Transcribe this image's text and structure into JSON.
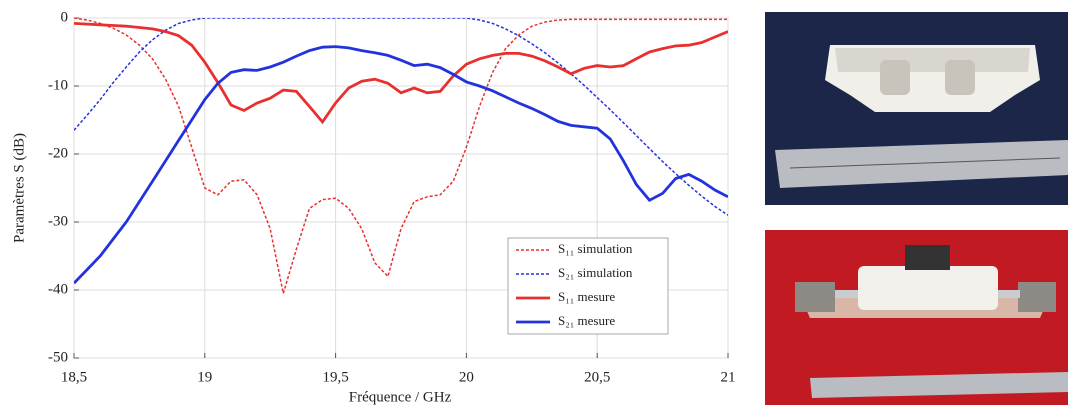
{
  "chart_data": {
    "type": "line",
    "xlabel": "Fréquence / GHz",
    "ylabel": "Paramètres S (dB)",
    "x": [
      18.5,
      18.55,
      18.6,
      18.65,
      18.7,
      18.75,
      18.8,
      18.85,
      18.9,
      18.95,
      19.0,
      19.05,
      19.1,
      19.15,
      19.2,
      19.25,
      19.3,
      19.35,
      19.4,
      19.45,
      19.5,
      19.55,
      19.6,
      19.65,
      19.7,
      19.75,
      19.8,
      19.85,
      19.9,
      19.95,
      20.0,
      20.05,
      20.1,
      20.15,
      20.2,
      20.25,
      20.3,
      20.35,
      20.4,
      20.45,
      20.5,
      20.55,
      20.6,
      20.65,
      20.7,
      20.75,
      20.8,
      20.85,
      20.9,
      20.95,
      21.0
    ],
    "series": [
      {
        "name": "S₁₁ simulation",
        "color": "#e8312f",
        "style": "dotted",
        "values": [
          0,
          -0.3,
          -0.8,
          -1.5,
          -2.5,
          -4,
          -6,
          -9,
          -13,
          -19,
          -25,
          -26,
          -24,
          -23.8,
          -26,
          -31,
          -40.5,
          -34,
          -28,
          -26.7,
          -26.5,
          -28,
          -31,
          -36,
          -38,
          -31,
          -27,
          -26.3,
          -26,
          -24,
          -19,
          -13,
          -8,
          -4.5,
          -2.5,
          -1.2,
          -0.6,
          -0.3,
          -0.2,
          -0.2,
          -0.2,
          -0.2,
          -0.2,
          -0.2,
          -0.2,
          -0.2,
          -0.2,
          -0.2,
          -0.2,
          -0.2,
          -0.2
        ]
      },
      {
        "name": "S₂₁ simulation",
        "color": "#2233dd",
        "style": "dotted",
        "values": [
          -16.5,
          -14.3,
          -12,
          -9.5,
          -7.2,
          -5,
          -3.2,
          -1.8,
          -0.8,
          -0.3,
          0,
          0,
          0,
          0,
          0,
          0,
          0,
          0,
          0,
          0,
          0,
          0,
          0,
          0,
          0,
          0,
          0,
          0,
          0,
          0,
          0,
          -0.3,
          -0.8,
          -1.6,
          -2.6,
          -3.8,
          -5.1,
          -6.6,
          -8.2,
          -9.9,
          -11.7,
          -13.5,
          -15.4,
          -17.3,
          -19.2,
          -21.1,
          -22.9,
          -24.6,
          -26.2,
          -27.7,
          -29
        ]
      },
      {
        "name": "S₁₁ mesure",
        "color": "#e8312f",
        "style": "solid",
        "values": [
          -0.8,
          -0.9,
          -1,
          -1.1,
          -1.2,
          -1.4,
          -1.6,
          -2,
          -2.6,
          -4,
          -6.5,
          -9.5,
          -12.8,
          -13.6,
          -12.5,
          -11.8,
          -10.6,
          -10.8,
          -13,
          -15.3,
          -12.5,
          -10.3,
          -9.3,
          -9,
          -9.6,
          -11,
          -10.3,
          -11,
          -10.8,
          -8.5,
          -6.8,
          -6,
          -5.5,
          -5.2,
          -5.2,
          -5.6,
          -6.3,
          -7.2,
          -8.2,
          -7.4,
          -7,
          -7.2,
          -7,
          -6,
          -5,
          -4.5,
          -4.1,
          -4,
          -3.6,
          -2.8,
          -2
        ]
      },
      {
        "name": "S₂₁ mesure",
        "color": "#2233dd",
        "style": "solid",
        "values": [
          -39,
          -37,
          -35,
          -32.5,
          -30,
          -27,
          -24,
          -21,
          -18,
          -15,
          -12,
          -9.6,
          -8,
          -7.6,
          -7.7,
          -7.2,
          -6.5,
          -5.6,
          -4.8,
          -4.3,
          -4.2,
          -4.4,
          -4.8,
          -5.1,
          -5.5,
          -6.2,
          -7,
          -6.8,
          -7.3,
          -8.3,
          -9.4,
          -10,
          -10.7,
          -11.6,
          -12.5,
          -13.3,
          -14.2,
          -15.2,
          -15.8,
          -16,
          -16.2,
          -17.8,
          -21,
          -24.5,
          -26.8,
          -25.8,
          -23.6,
          -23,
          -24,
          -25.3,
          -26.3
        ]
      }
    ],
    "xlim": [
      18.5,
      21
    ],
    "ylim": [
      -50,
      0
    ],
    "xticks": [
      {
        "value": 18.5,
        "label": "18,5"
      },
      19,
      {
        "value": 19.5,
        "label": "19,5"
      },
      20,
      {
        "value": 20.5,
        "label": "20,5"
      },
      21
    ],
    "yticks": [
      -50,
      -40,
      -30,
      -20,
      -10,
      0
    ],
    "grid": true,
    "legend": "lower right"
  }
}
